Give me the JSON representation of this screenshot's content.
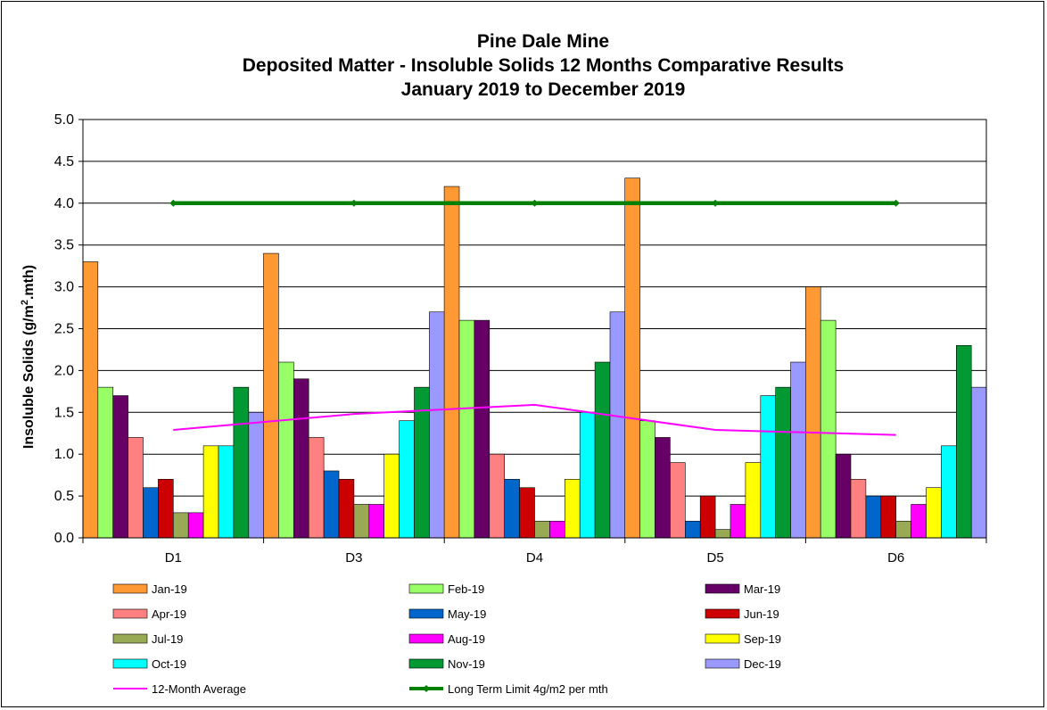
{
  "chart_data": {
    "type": "bar",
    "title": "Pine Dale Mine",
    "subtitle": [
      "Deposited Matter - Insoluble Solids 12 Months Comparative Results",
      "January 2019 to December 2019"
    ],
    "xlabel": "",
    "ylabel_main": "Insoluble Solids (g/m",
    "ylabel_sup": "2",
    "ylabel_end": ".mth)",
    "ylim": [
      0,
      5
    ],
    "yticks": [
      "0.0",
      "0.5",
      "1.0",
      "1.5",
      "2.0",
      "2.5",
      "3.0",
      "3.5",
      "4.0",
      "4.5",
      "5.0"
    ],
    "grid": true,
    "legend_position": "bottom",
    "categories": [
      "D1",
      "D3",
      "D4",
      "D5",
      "D6"
    ],
    "series": [
      {
        "name": "Jan-19",
        "color": "#FF9933",
        "values": [
          3.3,
          3.4,
          4.2,
          4.3,
          3.0
        ]
      },
      {
        "name": "Feb-19",
        "color": "#99FF66",
        "values": [
          1.8,
          2.1,
          2.6,
          1.4,
          2.6
        ]
      },
      {
        "name": "Mar-19",
        "color": "#660066",
        "values": [
          1.7,
          1.9,
          2.6,
          1.2,
          1.0
        ]
      },
      {
        "name": "Apr-19",
        "color": "#FF8080",
        "values": [
          1.2,
          1.2,
          1.0,
          0.9,
          0.7
        ]
      },
      {
        "name": "May-19",
        "color": "#0066CC",
        "values": [
          0.6,
          0.8,
          0.7,
          0.2,
          0.5
        ]
      },
      {
        "name": "Jun-19",
        "color": "#CC0000",
        "values": [
          0.7,
          0.7,
          0.6,
          0.5,
          0.5
        ]
      },
      {
        "name": "Jul-19",
        "color": "#99AA55",
        "values": [
          0.3,
          0.4,
          0.2,
          0.1,
          0.2
        ]
      },
      {
        "name": "Aug-19",
        "color": "#FF00FF",
        "values": [
          0.3,
          0.4,
          0.2,
          0.4,
          0.4
        ]
      },
      {
        "name": "Sep-19",
        "color": "#FFFF00",
        "values": [
          1.1,
          1.0,
          0.7,
          0.9,
          0.6
        ]
      },
      {
        "name": "Oct-19",
        "color": "#00FFFF",
        "values": [
          1.1,
          1.4,
          1.5,
          1.7,
          1.1
        ]
      },
      {
        "name": "Nov-19",
        "color": "#009933",
        "values": [
          1.8,
          1.8,
          2.1,
          1.8,
          2.3
        ]
      },
      {
        "name": "Dec-19",
        "color": "#9999FF",
        "values": [
          1.5,
          2.7,
          2.7,
          2.1,
          1.8
        ]
      }
    ],
    "lines": [
      {
        "name": "12-Month Average",
        "color": "#FF00FF",
        "values": [
          1.29,
          1.48,
          1.59,
          1.29,
          1.23
        ],
        "markers": false
      },
      {
        "name": "Long Term Limit 4g/m2 per mth",
        "color": "#008000",
        "values": [
          4.0,
          4.0,
          4.0,
          4.0,
          4.0
        ],
        "markers": true
      }
    ]
  }
}
